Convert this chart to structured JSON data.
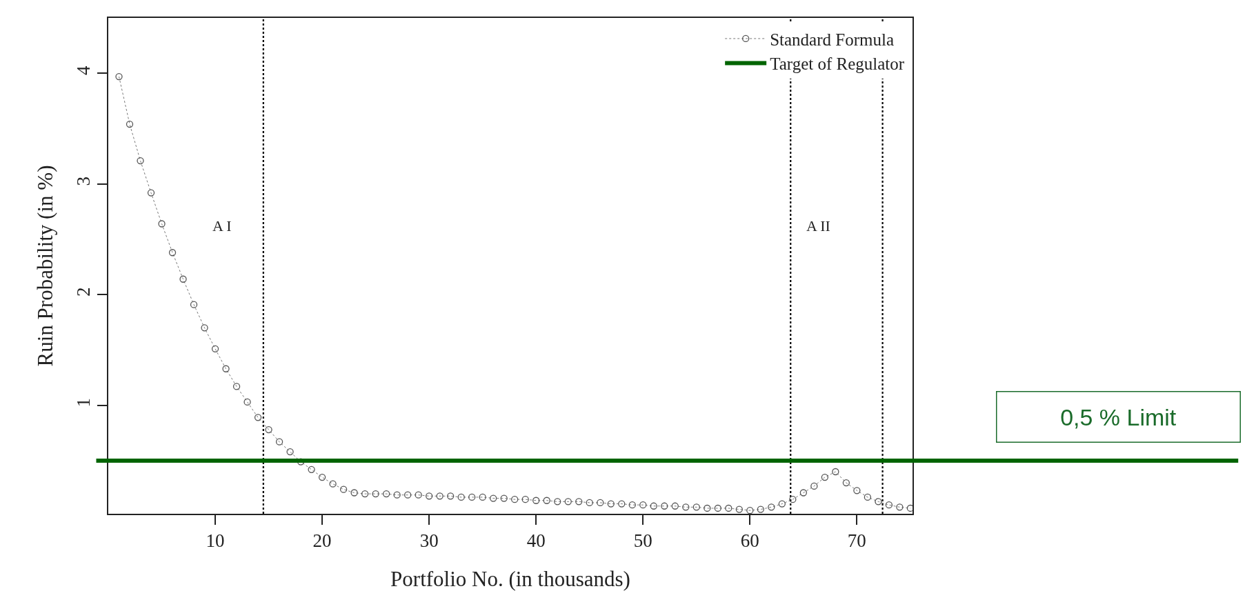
{
  "chart_data": {
    "type": "line",
    "xlabel": "Portfolio No. (in thousands)",
    "ylabel": "Ruin Probability (in %)",
    "x": [
      1,
      2,
      3,
      4,
      5,
      6,
      7,
      8,
      9,
      10,
      11,
      12,
      13,
      14,
      15,
      16,
      17,
      18,
      19,
      20,
      21,
      22,
      23,
      24,
      25,
      26,
      27,
      28,
      29,
      30,
      31,
      32,
      33,
      34,
      35,
      36,
      37,
      38,
      39,
      40,
      41,
      42,
      43,
      44,
      45,
      46,
      47,
      48,
      49,
      50,
      51,
      52,
      53,
      54,
      55,
      56,
      57,
      58,
      59,
      60,
      61,
      62,
      63,
      64,
      65,
      66,
      67,
      68,
      69,
      70,
      71,
      72,
      73,
      74,
      75
    ],
    "series": [
      {
        "name": "Standard Formula",
        "color": "#555555",
        "marker": "circle",
        "line_style": "dotted",
        "values": [
          3.97,
          3.54,
          3.21,
          2.92,
          2.64,
          2.38,
          2.14,
          1.91,
          1.7,
          1.51,
          1.33,
          1.17,
          1.03,
          0.89,
          0.78,
          0.67,
          0.58,
          0.49,
          0.42,
          0.35,
          0.29,
          0.24,
          0.21,
          0.2,
          0.2,
          0.2,
          0.19,
          0.19,
          0.19,
          0.18,
          0.18,
          0.18,
          0.17,
          0.17,
          0.17,
          0.16,
          0.16,
          0.15,
          0.15,
          0.14,
          0.14,
          0.13,
          0.13,
          0.13,
          0.12,
          0.12,
          0.11,
          0.11,
          0.1,
          0.1,
          0.09,
          0.09,
          0.09,
          0.08,
          0.08,
          0.07,
          0.07,
          0.07,
          0.06,
          0.05,
          0.06,
          0.08,
          0.11,
          0.15,
          0.21,
          0.27,
          0.35,
          0.4,
          0.3,
          0.23,
          0.17,
          0.13,
          0.1,
          0.08,
          0.07
        ]
      }
    ],
    "ref_lines": [
      {
        "axis": "y",
        "value": 0.5,
        "label": "Target of Regulator",
        "color": "#006400",
        "line_style": "solid"
      },
      {
        "axis": "x",
        "value": 14.5,
        "color": "#000000",
        "line_style": "dotted"
      },
      {
        "axis": "x",
        "value": 63.8,
        "color": "#000000",
        "line_style": "dotted"
      },
      {
        "axis": "x",
        "value": 72.4,
        "color": "#000000",
        "line_style": "dotted"
      }
    ],
    "annotations": [
      "A I",
      "A II",
      "0,5 % Limit"
    ],
    "xlim": [
      0,
      75.2
    ],
    "xticks": [
      10,
      20,
      30,
      40,
      50,
      60,
      70
    ],
    "ylim": [
      0.02,
      4.5
    ],
    "yticks": [
      1,
      2,
      3,
      4
    ],
    "grid": false,
    "legend": "top right"
  }
}
